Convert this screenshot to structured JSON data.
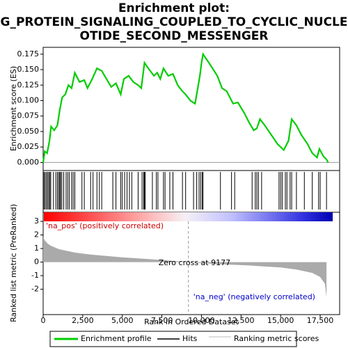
{
  "chart_data": [
    {
      "type": "line",
      "title": [
        "Enrichment plot:",
        "G_PROTEIN_SIGNALING_COUPLED_TO_CYCLIC_NUCLE",
        "OTIDE_SECOND_MESSENGER"
      ],
      "ylabel": "Enrichment score (ES)",
      "xlim": [
        0,
        18730
      ],
      "ylim": [
        -0.013,
        0.186
      ],
      "yticks": [
        {
          "value": 0,
          "label": "0.000"
        },
        {
          "value": 0.025,
          "label": "0.025"
        },
        {
          "value": 0.05,
          "label": "0.050"
        },
        {
          "value": 0.075,
          "label": "0.075"
        },
        {
          "value": 0.1,
          "label": "0.100"
        },
        {
          "value": 0.125,
          "label": "0.125"
        },
        {
          "value": 0.15,
          "label": "0.150"
        },
        {
          "value": 0.175,
          "label": "0.175"
        }
      ],
      "series": [
        {
          "name": "Enrichment profile",
          "color": "#00cc00",
          "x": [
            0,
            100,
            250,
            400,
            500,
            700,
            900,
            1050,
            1200,
            1400,
            1600,
            1800,
            2000,
            2300,
            2600,
            2800,
            3100,
            3400,
            3700,
            4000,
            4300,
            4600,
            4900,
            5100,
            5400,
            5700,
            6000,
            6200,
            6400,
            6700,
            7000,
            7200,
            7400,
            7600,
            7900,
            8200,
            8500,
            8800,
            9000,
            9300,
            9600,
            9700,
            9900,
            10000,
            10100,
            10500,
            11000,
            11300,
            11600,
            12000,
            12300,
            12700,
            13000,
            13300,
            13500,
            13700,
            14000,
            14400,
            14800,
            15000,
            15200,
            15500,
            15700,
            16000,
            16300,
            16700,
            17000,
            17300,
            17450,
            17700,
            17900,
            18000
          ],
          "values": [
            0,
            0.018,
            0.015,
            0.035,
            0.058,
            0.052,
            0.06,
            0.085,
            0.105,
            0.11,
            0.125,
            0.12,
            0.145,
            0.13,
            0.133,
            0.12,
            0.135,
            0.152,
            0.148,
            0.135,
            0.122,
            0.128,
            0.11,
            0.135,
            0.14,
            0.13,
            0.125,
            0.12,
            0.161,
            0.15,
            0.14,
            0.145,
            0.135,
            0.152,
            0.14,
            0.143,
            0.125,
            0.115,
            0.11,
            0.1,
            0.095,
            0.11,
            0.14,
            0.16,
            0.175,
            0.16,
            0.14,
            0.12,
            0.115,
            0.095,
            0.097,
            0.08,
            0.065,
            0.052,
            0.055,
            0.07,
            0.06,
            0.045,
            0.03,
            0.025,
            0.02,
            0.035,
            0.07,
            0.06,
            0.045,
            0.03,
            0.015,
            0.008,
            0.022,
            0.01,
            0.005,
            0
          ]
        }
      ]
    },
    {
      "type": "hits",
      "name": "Hits",
      "xlim": [
        0,
        18730
      ],
      "x": [
        50,
        120,
        200,
        280,
        350,
        420,
        480,
        650,
        800,
        900,
        980,
        1050,
        1100,
        1180,
        1300,
        1450,
        1550,
        1650,
        1800,
        1900,
        2000,
        2450,
        2600,
        3000,
        3150,
        3400,
        3550,
        3700,
        4400,
        4600,
        4900,
        5000,
        5150,
        5300,
        5450,
        5600,
        6000,
        6250,
        6350,
        6400,
        6450,
        6900,
        7150,
        7250,
        7600,
        7700,
        8000,
        8200,
        8800,
        9000,
        9500,
        9700,
        9850,
        9950,
        10050,
        10100,
        11200,
        11900,
        12100,
        13200,
        13400,
        13500,
        13600,
        13800,
        14900,
        15000,
        15100,
        15300,
        15400,
        15600,
        15700,
        16000,
        16500,
        17000,
        17400,
        17500,
        17900
      ]
    },
    {
      "type": "area",
      "ylabel": "Ranked list metric (PreRanked)",
      "xlabel": "Rank in Ordered Dataset",
      "xlim": [
        0,
        18730
      ],
      "ylim": [
        -3.87,
        3.67
      ],
      "yticks": [
        -2,
        -1,
        0,
        1,
        2,
        3
      ],
      "xticks": [
        0,
        {
          "value": 2500,
          "label": "2,500"
        },
        {
          "value": 5000,
          "label": "5,000"
        },
        {
          "value": 7500,
          "label": "7,500"
        },
        {
          "value": 10000,
          "label": "10,000"
        },
        {
          "value": 12500,
          "label": "12,500"
        },
        {
          "value": 15000,
          "label": "15,000"
        },
        {
          "value": 17500,
          "label": "17,500"
        }
      ],
      "zero_cross": 9177,
      "annotations": [
        "'na_pos' (positively correlated)",
        "Zero cross at 9177",
        "'na_neg' (negatively correlated)"
      ],
      "series": [
        {
          "name": "Ranking metric scores",
          "color": "#aaaaaa",
          "x": [
            0,
            100,
            300,
            500,
            1000,
            2000,
            3000,
            5000,
            7000,
            9177,
            11000,
            13000,
            15000,
            16000,
            17000,
            17500,
            17800,
            17900
          ],
          "values": [
            1.87,
            1.6,
            1.35,
            1.2,
            0.95,
            0.7,
            0.55,
            0.35,
            0.2,
            0,
            -0.15,
            -0.25,
            -0.4,
            -0.55,
            -0.8,
            -1.1,
            -1.6,
            -2.6
          ]
        }
      ]
    }
  ]
}
